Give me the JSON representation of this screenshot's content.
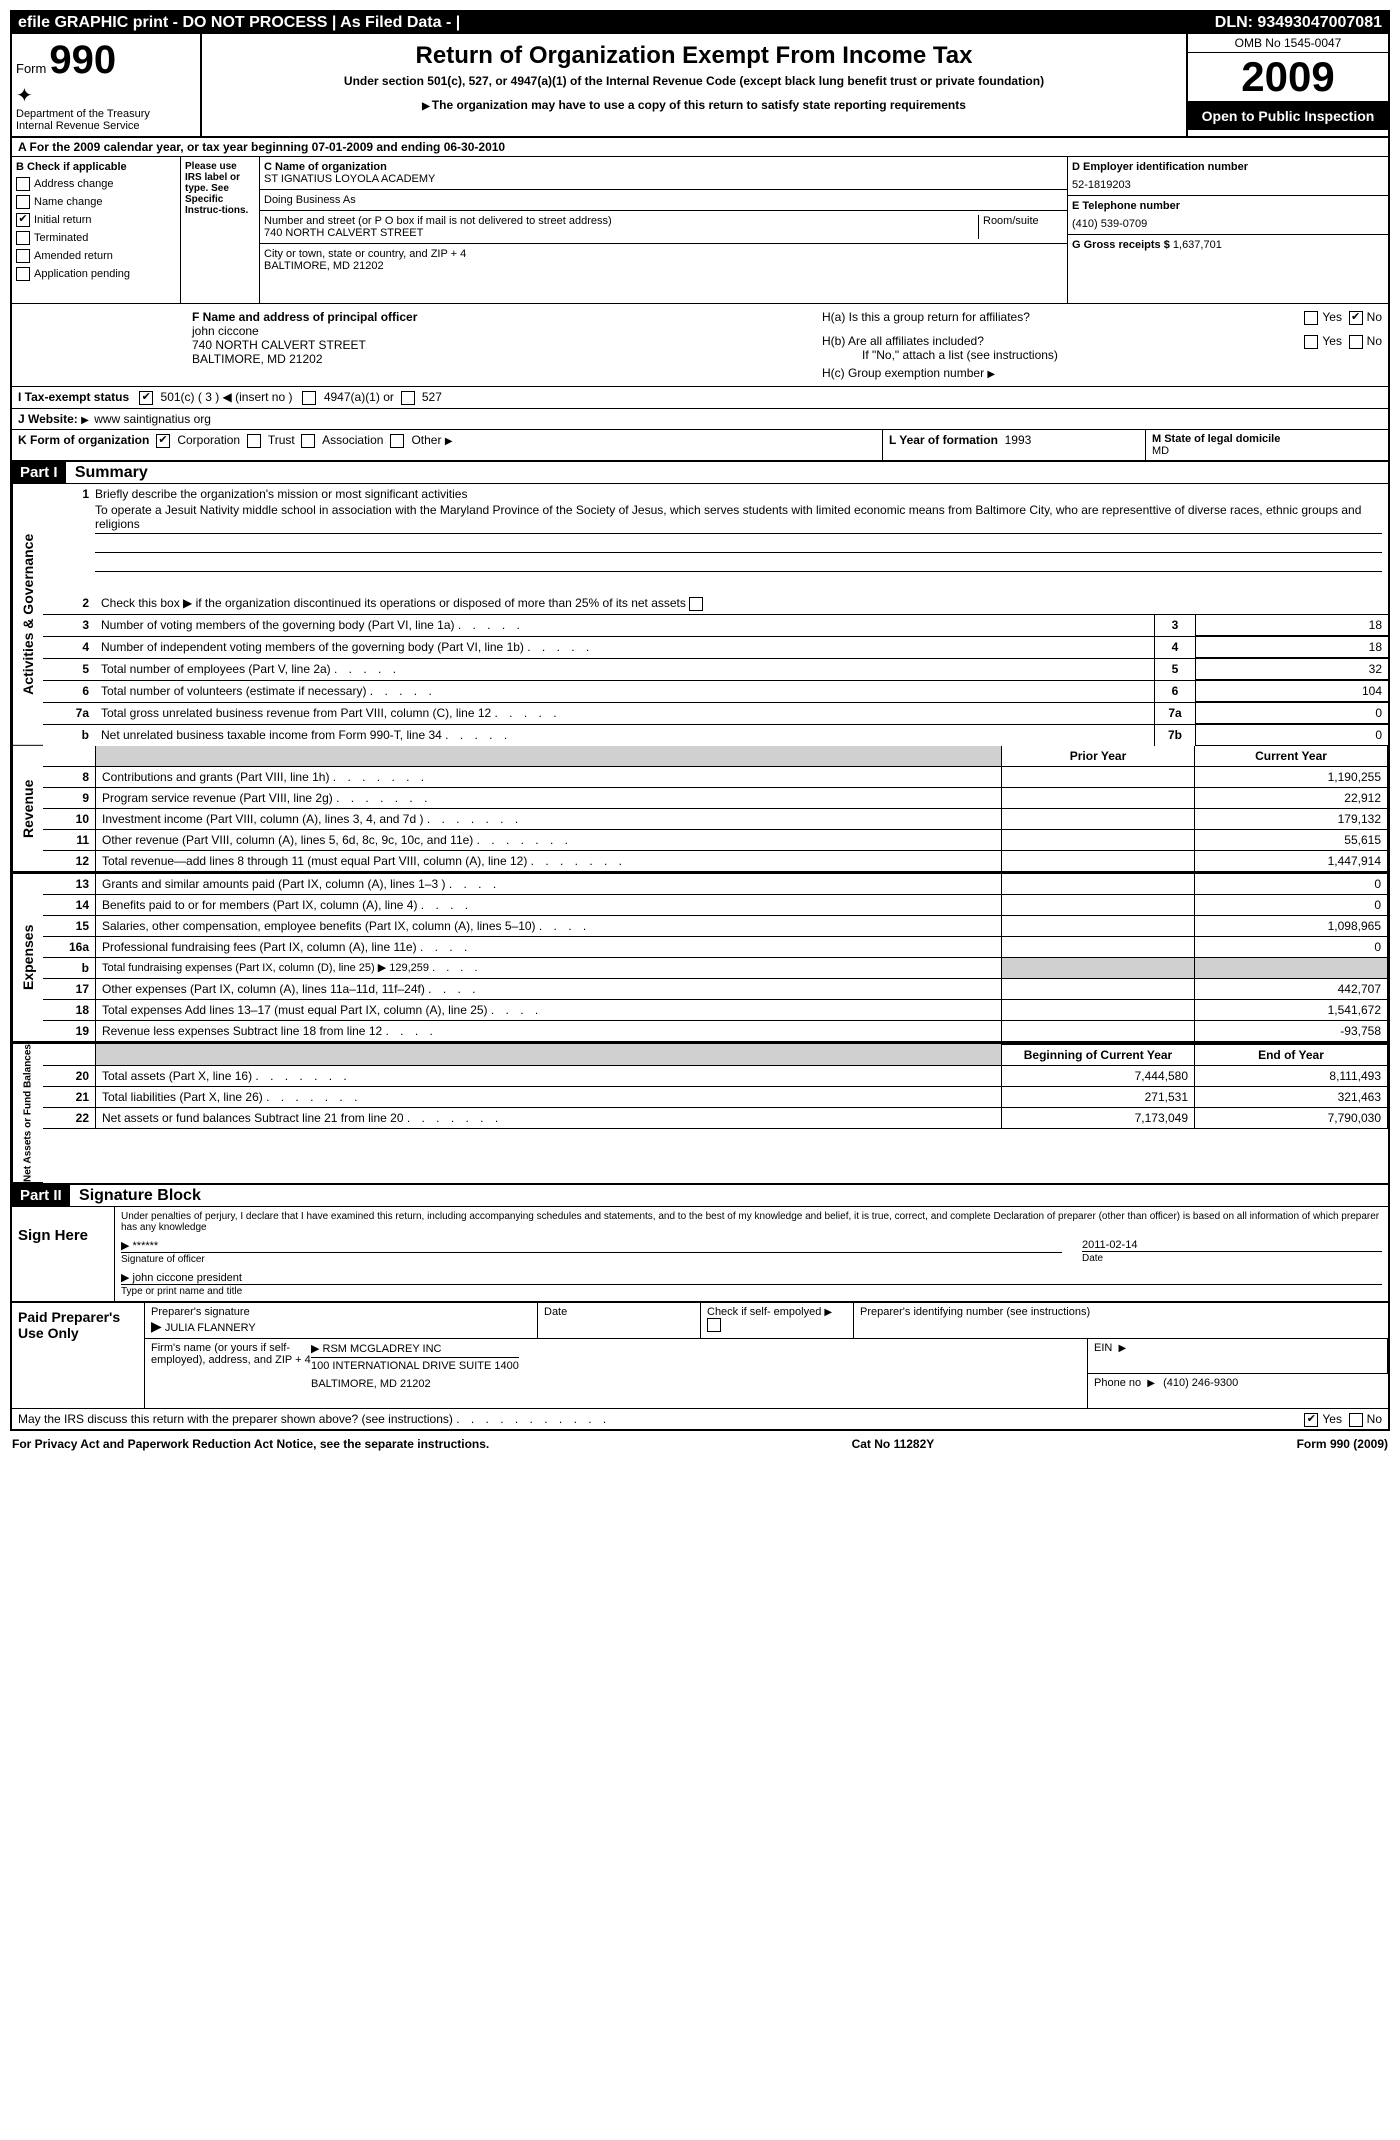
{
  "topbar": {
    "left": "efile GRAPHIC print - DO NOT PROCESS",
    "mid": "| As Filed Data - |",
    "dln": "DLN: 93493047007081"
  },
  "header": {
    "form_label": "Form",
    "form_num": "990",
    "dept": "Department of the Treasury",
    "irs": "Internal Revenue Service",
    "title": "Return of Organization Exempt From Income Tax",
    "sub1": "Under section 501(c), 527, or 4947(a)(1) of the Internal Revenue Code (except black lung benefit trust or private foundation)",
    "sub2": "The organization may have to use a copy of this return to satisfy state reporting requirements",
    "omb": "OMB No 1545-0047",
    "year": "2009",
    "open": "Open to Public Inspection"
  },
  "row_a": "A  For the 2009 calendar year, or tax year beginning 07-01-2009    and ending 06-30-2010",
  "section_b": {
    "label": "B Check if applicable",
    "items": [
      "Address change",
      "Name change",
      "Initial return",
      "Terminated",
      "Amended return",
      "Application pending"
    ],
    "checked": [
      false,
      false,
      true,
      false,
      false,
      false
    ],
    "irs_note": "Please use IRS label or type. See Specific Instruc-tions."
  },
  "org": {
    "c_label": "C Name of organization",
    "name": "ST IGNATIUS LOYOLA ACADEMY",
    "dba_label": "Doing Business As",
    "street_label": "Number and street (or P O  box if mail is not delivered to street address)",
    "room_label": "Room/suite",
    "street": "740 NORTH CALVERT STREET",
    "city_label": "City or town, state or country, and ZIP + 4",
    "city": "BALTIMORE, MD  21202"
  },
  "d": {
    "ein_label": "D Employer identification number",
    "ein": "52-1819203",
    "phone_label": "E Telephone number",
    "phone": "(410) 539-0709",
    "receipts_label": "G Gross receipts $",
    "receipts": "1,637,701"
  },
  "f": {
    "label": "F   Name and address of principal officer",
    "name": "john ciccone",
    "addr1": "740 NORTH CALVERT STREET",
    "addr2": "BALTIMORE, MD  21202"
  },
  "h": {
    "a": "H(a)  Is this a group return for affiliates?",
    "b": "H(b)  Are all affiliates included?",
    "b_note": "If \"No,\" attach a list  (see instructions)",
    "c": "H(c)   Group exemption number"
  },
  "i": {
    "label": "I   Tax-exempt status",
    "opt1": "501(c) ( 3 )",
    "insert": "(insert no )",
    "opt2": "4947(a)(1) or",
    "opt3": "527"
  },
  "j": {
    "label": "J   Website:",
    "val": "www saintignatius org"
  },
  "k": {
    "label": "K Form of organization",
    "opts": [
      "Corporation",
      "Trust",
      "Association",
      "Other"
    ],
    "l_label": "L Year of formation",
    "l_val": "1993",
    "m_label": "M State of legal domicile",
    "m_val": "MD"
  },
  "part1": {
    "head": "Part I",
    "title": "Summary",
    "gov_label": "Activities & Governance",
    "rev_label": "Revenue",
    "exp_label": "Expenses",
    "net_label": "Net Assets or Fund Balances",
    "line1_label": "Briefly describe the organization's mission or most significant activities",
    "mission": "To operate a Jesuit Nativity middle school in association with the Maryland Province of the Society of Jesus, which serves students with limited economic means from Baltimore City, who are representtive of diverse races, ethnic groups and religions",
    "line2": "Check this box ▶ if the organization discontinued its operations or disposed of more than 25% of its net assets",
    "lines": [
      {
        "n": "3",
        "t": "Number of voting members of the governing body (Part VI, line 1a)",
        "k": "3",
        "v": "18"
      },
      {
        "n": "4",
        "t": "Number of independent voting members of the governing body (Part VI, line 1b)",
        "k": "4",
        "v": "18"
      },
      {
        "n": "5",
        "t": "Total number of employees (Part V, line 2a)",
        "k": "5",
        "v": "32"
      },
      {
        "n": "6",
        "t": "Total number of volunteers (estimate if necessary)",
        "k": "6",
        "v": "104"
      },
      {
        "n": "7a",
        "t": "Total gross unrelated business revenue from Part VIII, column (C), line 12",
        "k": "7a",
        "v": "0"
      },
      {
        "n": "b",
        "t": "Net unrelated business taxable income from Form 990-T, line 34",
        "k": "7b",
        "v": "0"
      }
    ],
    "col_prior": "Prior Year",
    "col_curr": "Current Year",
    "rev_lines": [
      {
        "n": "8",
        "t": "Contributions and grants (Part VIII, line 1h)",
        "p": "",
        "c": "1,190,255"
      },
      {
        "n": "9",
        "t": "Program service revenue (Part VIII, line 2g)",
        "p": "",
        "c": "22,912"
      },
      {
        "n": "10",
        "t": "Investment income (Part VIII, column (A), lines 3, 4, and 7d )",
        "p": "",
        "c": "179,132"
      },
      {
        "n": "11",
        "t": "Other revenue (Part VIII, column (A), lines 5, 6d, 8c, 9c, 10c, and 11e)",
        "p": "",
        "c": "55,615"
      },
      {
        "n": "12",
        "t": "Total revenue—add lines 8 through 11 (must equal Part VIII, column (A), line 12)",
        "p": "",
        "c": "1,447,914"
      }
    ],
    "exp_lines": [
      {
        "n": "13",
        "t": "Grants and similar amounts paid (Part IX, column (A), lines 1–3 )",
        "p": "",
        "c": "0"
      },
      {
        "n": "14",
        "t": "Benefits paid to or for members (Part IX, column (A), line 4)",
        "p": "",
        "c": "0"
      },
      {
        "n": "15",
        "t": "Salaries, other compensation, employee benefits (Part IX, column (A), lines 5–10)",
        "p": "",
        "c": "1,098,965"
      },
      {
        "n": "16a",
        "t": "Professional fundraising fees (Part IX, column (A), line 11e)",
        "p": "",
        "c": "0"
      },
      {
        "n": "b",
        "t": "Total fundraising expenses (Part IX, column (D), line 25) ▶ 129,259",
        "p": "gray",
        "c": "gray"
      },
      {
        "n": "17",
        "t": "Other expenses (Part IX, column (A), lines 11a–11d, 11f–24f)",
        "p": "",
        "c": "442,707"
      },
      {
        "n": "18",
        "t": "Total expenses  Add lines 13–17 (must equal Part IX, column (A), line 25)",
        "p": "",
        "c": "1,541,672"
      },
      {
        "n": "19",
        "t": "Revenue less expenses  Subtract line 18 from line 12",
        "p": "",
        "c": "-93,758"
      }
    ],
    "net_head_l": "Beginning of Current Year",
    "net_head_r": "End of Year",
    "net_lines": [
      {
        "n": "20",
        "t": "Total assets (Part X, line 16)",
        "p": "7,444,580",
        "c": "8,111,493"
      },
      {
        "n": "21",
        "t": "Total liabilities (Part X, line 26)",
        "p": "271,531",
        "c": "321,463"
      },
      {
        "n": "22",
        "t": "Net assets or fund balances  Subtract line 21 from line 20",
        "p": "7,173,049",
        "c": "7,790,030"
      }
    ]
  },
  "part2": {
    "head": "Part II",
    "title": "Signature Block",
    "perjury": "Under penalties of perjury, I declare that I have examined this return, including accompanying schedules and statements, and to the best of my knowledge and belief, it is true, correct, and complete  Declaration of preparer (other than officer) is based on all information of which preparer has any knowledge",
    "sign_here": "Sign Here",
    "sig_stars": "******",
    "sig_date": "2011-02-14",
    "sig_officer_label": "Signature of officer",
    "date_label": "Date",
    "officer_name": "john ciccone  president",
    "officer_label": "Type or print name and title",
    "paid": "Paid Preparer's Use Only",
    "prep_sig_label": "Preparer's signature",
    "prep_name": "JULIA FLANNERY",
    "date_col": "Date",
    "self_emp": "Check if self- empolyed",
    "prep_id": "Preparer's identifying number (see instructions)",
    "firm_label": "Firm's name (or yours if self-employed), address, and ZIP + 4",
    "firm_name": "RSM MCGLADREY INC",
    "firm_addr1": "100 INTERNATIONAL DRIVE SUITE 1400",
    "firm_addr2": "BALTIMORE, MD  21202",
    "ein_label": "EIN",
    "phone_label": "Phone no",
    "phone": "(410) 246-9300",
    "discuss": "May the IRS discuss this return with the preparer shown above? (see instructions)"
  },
  "footer": {
    "left": "For Privacy Act and Paperwork Reduction Act Notice, see the separate instructions.",
    "mid": "Cat No 11282Y",
    "right": "Form 990 (2009)"
  }
}
